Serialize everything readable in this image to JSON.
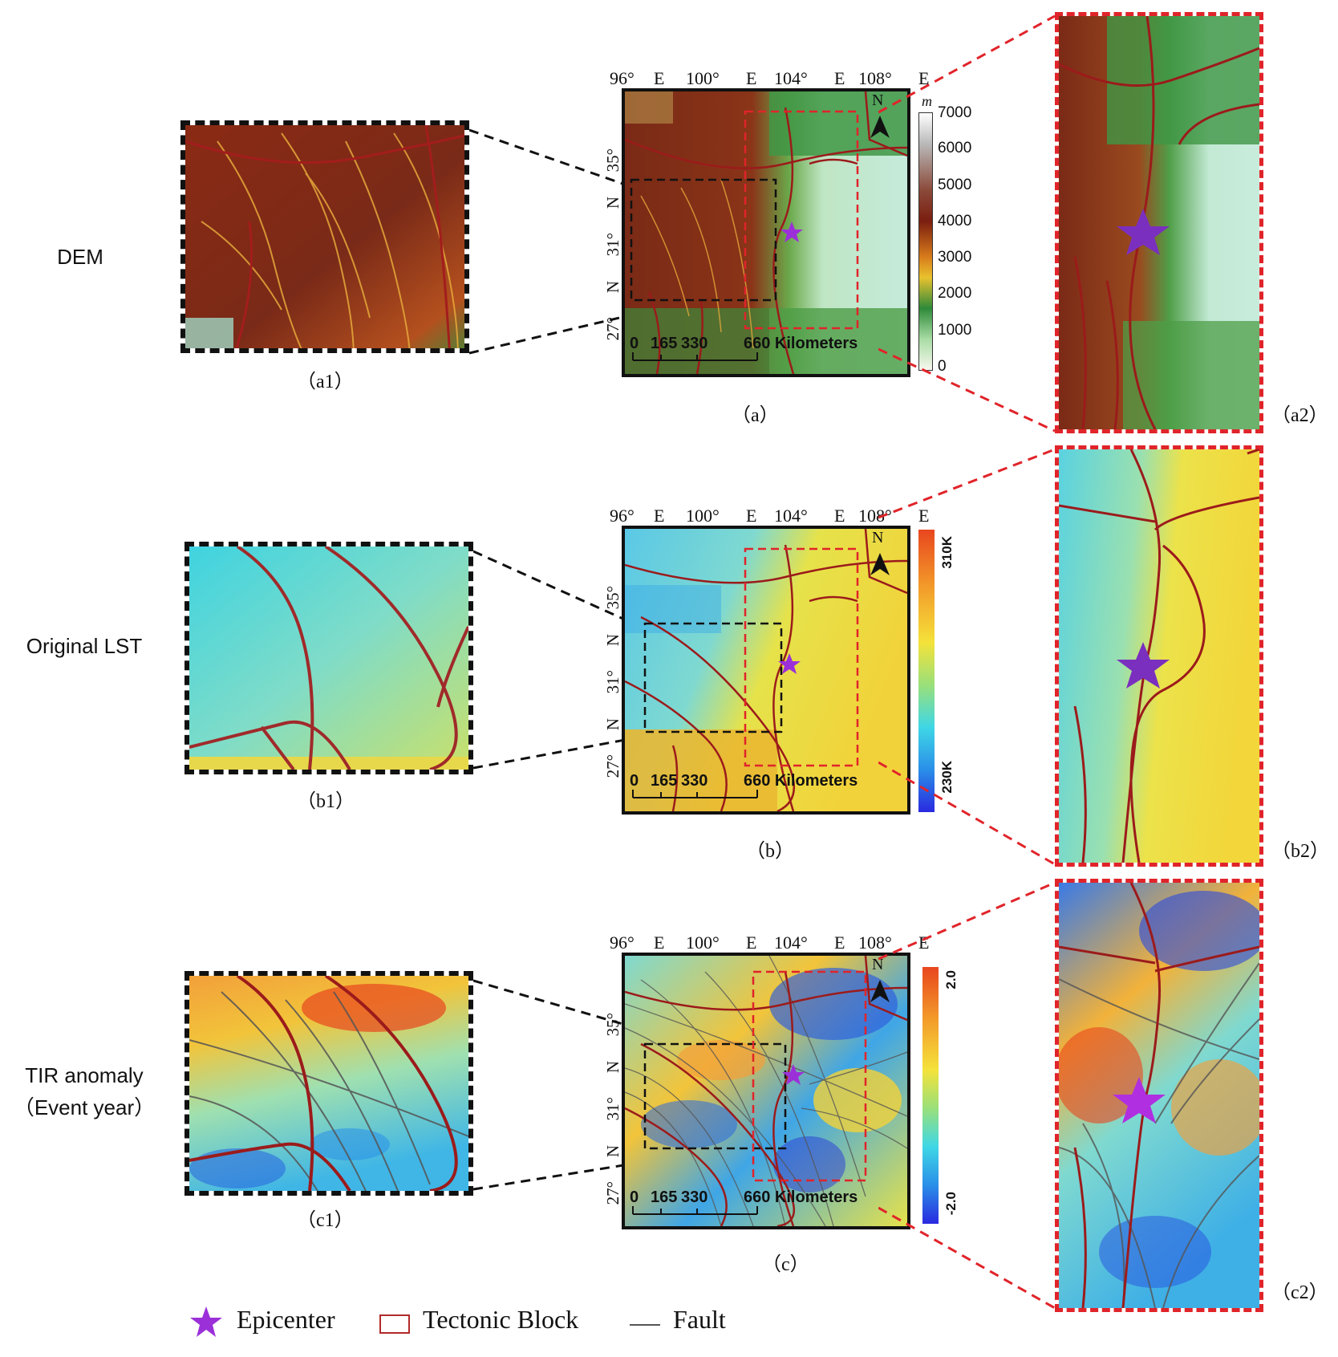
{
  "rows": [
    {
      "label_lines": [
        "DEM"
      ],
      "inset_left_caption": "（a1）",
      "main_caption": "（a）",
      "inset_right_caption": "（a2）",
      "colorbar_type": "dem",
      "colorbar_unit": "m",
      "colorbar_ticks": [
        "7000",
        "6000",
        "5000",
        "4000",
        "3000",
        "2000",
        "1000",
        "0"
      ]
    },
    {
      "label_lines": [
        "Original LST"
      ],
      "inset_left_caption": "（b1）",
      "main_caption": "（b）",
      "inset_right_caption": "（b2）",
      "colorbar_type": "lst",
      "colorbar_high": "310K",
      "colorbar_low": "230K"
    },
    {
      "label_lines": [
        "TIR anomaly",
        "（Event year）"
      ],
      "inset_left_caption": "（c1）",
      "main_caption": "（c）",
      "inset_right_caption": "（c2）",
      "colorbar_type": "anomaly",
      "colorbar_high": "2.0",
      "colorbar_low": "-2.0"
    }
  ],
  "axis": {
    "top_labels": [
      "96°",
      "E",
      "100°",
      "E",
      "104°",
      "E",
      "108°",
      "E"
    ],
    "left_labels": [
      "35°",
      "N",
      "31°",
      "N",
      "27°",
      "N"
    ]
  },
  "north_arrow": "N",
  "scale_bar": {
    "ticks": [
      "0",
      "165",
      "330",
      "660 Kilometers"
    ]
  },
  "legend": {
    "epicenter": "Epicenter",
    "tectonic_block": "Tectonic Block",
    "fault": "Fault"
  },
  "colors": {
    "epicenter": "#9b30d9",
    "fault_major": "#9b1b1b",
    "fault_minor": "#555555",
    "inset_frame": "#e0242a"
  }
}
